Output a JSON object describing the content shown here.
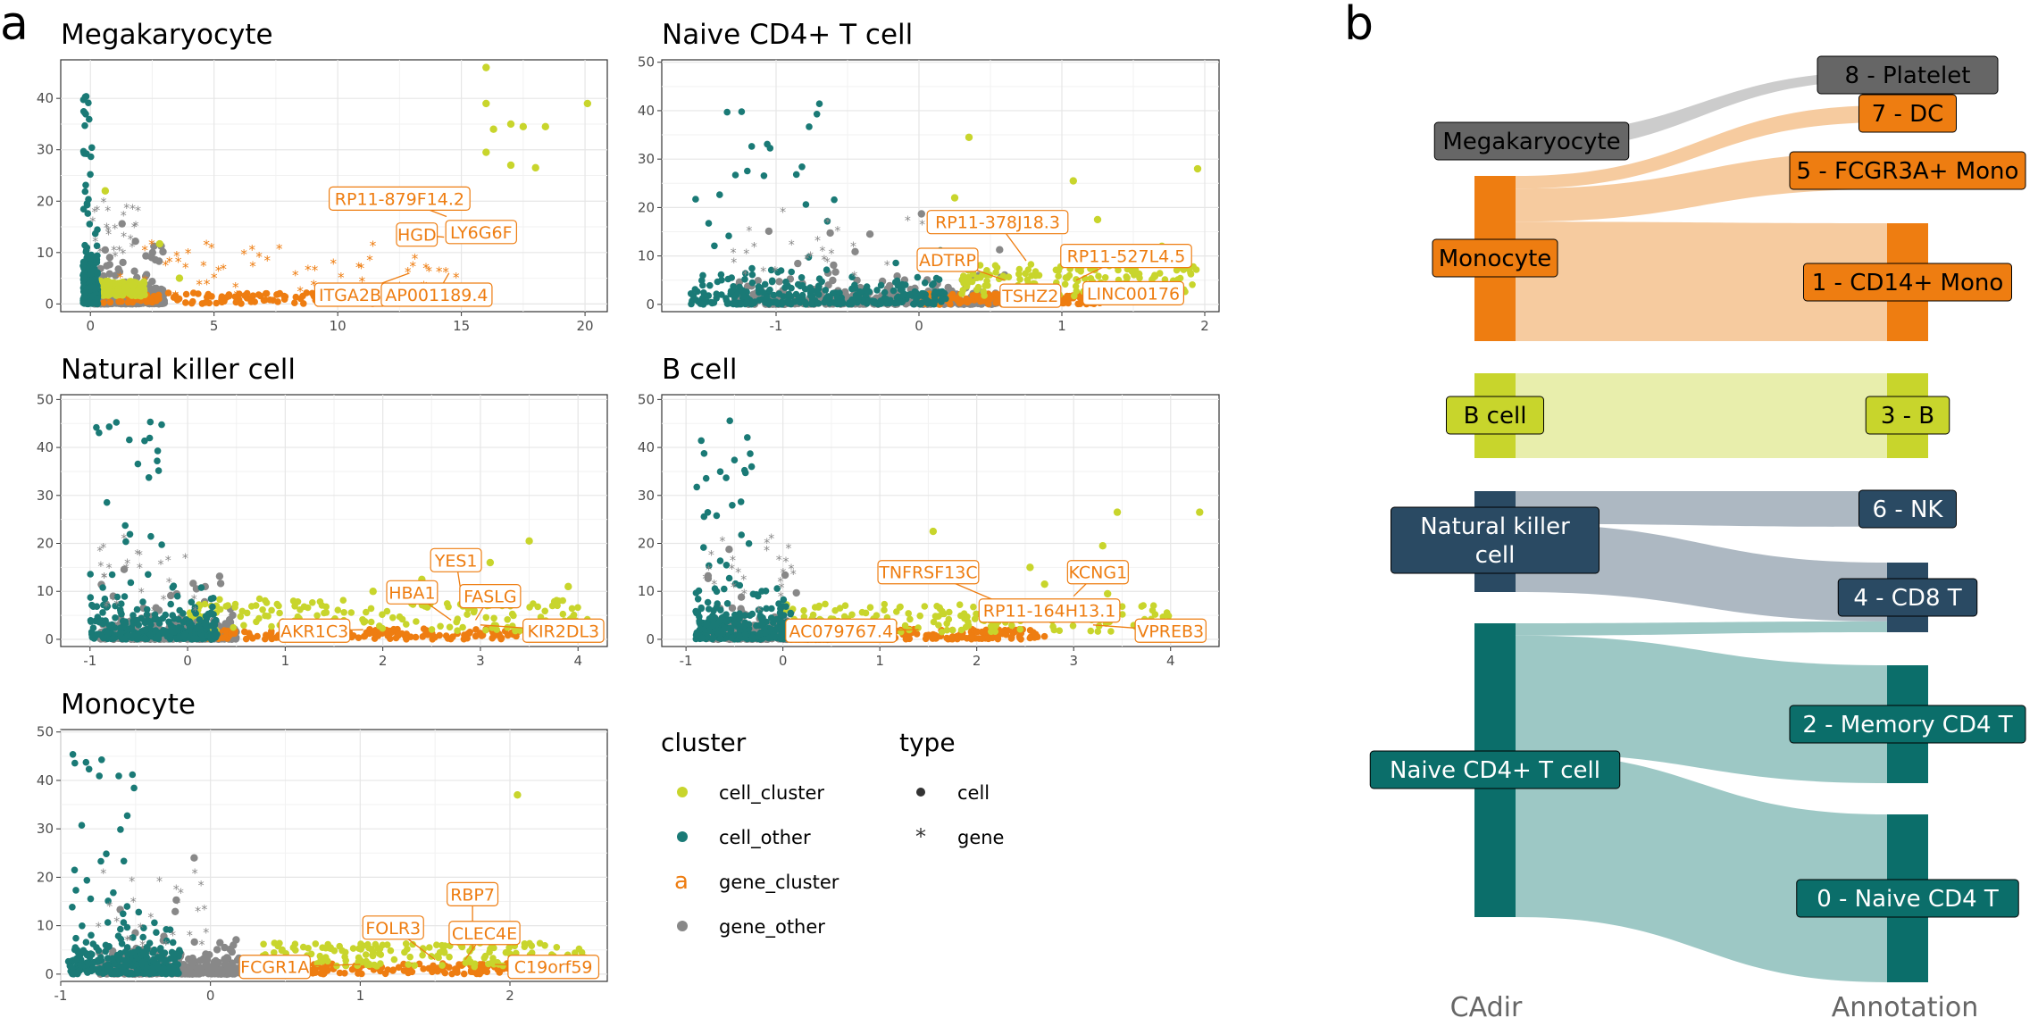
{
  "panel_labels": [
    "a",
    "b"
  ],
  "colors": {
    "cell_cluster": "#c8d52c",
    "cell_other": "#1a7a76",
    "gene_cluster": "#ee7d11",
    "gene_other": "#888888",
    "label_border": "#ee7d11"
  },
  "legend": {
    "cluster_title": "cluster",
    "cluster_items": [
      "cell_cluster",
      "cell_other",
      "gene_cluster",
      "gene_other"
    ],
    "gene_cluster_key_glyph": "a",
    "type_title": "type",
    "type_items": [
      "cell",
      "gene"
    ]
  },
  "chart_data": [
    {
      "type": "scatter",
      "title": "Megakaryocyte",
      "xlim": [
        -1.2,
        20.9
      ],
      "ylim": [
        -1.5,
        47.5
      ],
      "xticks": [
        0,
        5,
        10,
        15,
        20
      ],
      "yticks": [
        0,
        10,
        20,
        30,
        40
      ],
      "grid": true,
      "cell_cluster_points": [
        [
          16,
          46
        ],
        [
          16,
          39
        ],
        [
          16.3,
          34
        ],
        [
          17,
          35
        ],
        [
          17.5,
          34.5
        ],
        [
          18.4,
          34.5
        ],
        [
          16,
          29.5
        ],
        [
          17,
          27
        ],
        [
          18,
          26.5
        ],
        [
          20.1,
          39
        ],
        [
          0.6,
          22
        ],
        [
          2.8,
          11.7
        ],
        [
          3.6,
          5
        ]
      ],
      "gene_cluster_labels": [
        {
          "text": "RP11-879F14.2",
          "x": 12.5,
          "y": 20.5,
          "px": 14.4,
          "py": 17
        },
        {
          "text": "HGD",
          "x": 13.2,
          "y": 13.5,
          "px": 14.3,
          "py": 13
        },
        {
          "text": "LY6G6F",
          "x": 15.8,
          "y": 14,
          "px": 14.8,
          "py": 12
        },
        {
          "text": "ITGA2B",
          "x": 10.5,
          "y": 1.8,
          "px": 12.9,
          "py": 6
        },
        {
          "text": "AP001189.4",
          "x": 14,
          "y": 1.8,
          "px": 14.5,
          "py": 6
        }
      ]
    },
    {
      "type": "scatter",
      "title": "Naive CD4+ T cell",
      "xlim": [
        -1.8,
        2.1
      ],
      "ylim": [
        -1.5,
        50.5
      ],
      "xticks": [
        -1,
        0,
        1,
        2
      ],
      "yticks": [
        0,
        10,
        20,
        30,
        40,
        50
      ],
      "grid": true,
      "cell_cluster_points": [
        [
          0.35,
          34.5
        ],
        [
          1.08,
          25.5
        ],
        [
          0.25,
          22
        ],
        [
          1.95,
          28
        ],
        [
          1.25,
          17.5
        ],
        [
          0.9,
          15.5
        ],
        [
          1.7,
          12
        ]
      ],
      "gene_cluster_labels": [
        {
          "text": "RP11-378J18.3",
          "x": 0.55,
          "y": 17,
          "px": 0.75,
          "py": 9
        },
        {
          "text": "ADTRP",
          "x": 0.2,
          "y": 9.2,
          "px": 0.6,
          "py": 5
        },
        {
          "text": "RP11-527L4.5",
          "x": 1.45,
          "y": 10,
          "px": 1.1,
          "py": 5
        },
        {
          "text": "TSHZ2",
          "x": 0.78,
          "y": 1.8,
          "px": 0.7,
          "py": 4
        },
        {
          "text": "LINC00176",
          "x": 1.5,
          "y": 2.3,
          "px": 1.2,
          "py": 4
        }
      ]
    },
    {
      "type": "scatter",
      "title": "Natural killer cell",
      "xlim": [
        -1.3,
        4.3
      ],
      "ylim": [
        -1.5,
        51
      ],
      "xticks": [
        -1,
        0,
        1,
        2,
        3,
        4
      ],
      "yticks": [
        0,
        10,
        20,
        30,
        40,
        50
      ],
      "grid": true,
      "cell_cluster_points": [
        [
          3.5,
          20.5
        ],
        [
          3.1,
          16
        ],
        [
          2.4,
          12.5
        ],
        [
          1.9,
          10
        ],
        [
          3.9,
          11
        ]
      ],
      "gene_cluster_labels": [
        {
          "text": "YES1",
          "x": 2.75,
          "y": 16.5,
          "px": 2.8,
          "py": 10
        },
        {
          "text": "HBA1",
          "x": 2.3,
          "y": 9.8,
          "px": 2.7,
          "py": 4
        },
        {
          "text": "FASLG",
          "x": 3.1,
          "y": 9,
          "px": 2.95,
          "py": 4
        },
        {
          "text": "AKR1C3",
          "x": 1.3,
          "y": 1.8,
          "px": 1.8,
          "py": 2
        },
        {
          "text": "KIR2DL3",
          "x": 3.85,
          "y": 1.8,
          "px": 3.0,
          "py": 3
        }
      ]
    },
    {
      "type": "scatter",
      "title": "B cell",
      "xlim": [
        -1.25,
        4.5
      ],
      "ylim": [
        -1.5,
        51
      ],
      "xticks": [
        -1,
        0,
        1,
        2,
        3,
        4
      ],
      "yticks": [
        0,
        10,
        20,
        30,
        40,
        50
      ],
      "grid": true,
      "cell_cluster_points": [
        [
          4.3,
          26.5
        ],
        [
          3.45,
          26.5
        ],
        [
          1.55,
          22.5
        ],
        [
          3.3,
          19.5
        ],
        [
          2.55,
          15
        ],
        [
          2.7,
          11.5
        ],
        [
          3.35,
          9.5
        ]
      ],
      "gene_cluster_labels": [
        {
          "text": "TNFRSF13C",
          "x": 1.5,
          "y": 14,
          "px": 2.2,
          "py": 8
        },
        {
          "text": "KCNG1",
          "x": 3.25,
          "y": 14,
          "px": 3.0,
          "py": 9
        },
        {
          "text": "RP11-164H13.1",
          "x": 2.75,
          "y": 6,
          "px": 2.6,
          "py": 4
        },
        {
          "text": "AC079767.4",
          "x": 0.6,
          "y": 1.8,
          "px": 1.4,
          "py": 2
        },
        {
          "text": "VPREB3",
          "x": 4.0,
          "y": 1.8,
          "px": 3.2,
          "py": 3
        }
      ]
    },
    {
      "type": "scatter",
      "title": "Monocyte",
      "xlim": [
        -1.0,
        2.65
      ],
      "ylim": [
        -1.5,
        50.5
      ],
      "xticks": [
        -1,
        0,
        1,
        2
      ],
      "yticks": [
        0,
        10,
        20,
        30,
        40,
        50
      ],
      "grid": true,
      "cell_cluster_points": [
        [
          2.05,
          37
        ],
        [
          1.8,
          6.5
        ]
      ],
      "gene_cluster_labels": [
        {
          "text": "RBP7",
          "x": 1.75,
          "y": 16.5,
          "px": 1.75,
          "py": 5
        },
        {
          "text": "FOLR3",
          "x": 1.22,
          "y": 9.6,
          "px": 1.5,
          "py": 3
        },
        {
          "text": "CLEC4E",
          "x": 1.83,
          "y": 8.5,
          "px": 1.7,
          "py": 3
        },
        {
          "text": "FCGR1A",
          "x": 0.43,
          "y": 1.5,
          "px": 1.0,
          "py": 2
        },
        {
          "text": "C19orf59",
          "x": 2.29,
          "y": 1.5,
          "px": 1.9,
          "py": 2
        }
      ]
    },
    {
      "type": "sankey",
      "left_axis_label": "CAdir",
      "right_axis_label": "Annotation",
      "left_nodes": [
        {
          "name": "Megakaryocyte",
          "color": "#666666"
        },
        {
          "name": "Monocyte",
          "color": "#ee7d11"
        },
        {
          "name": "B cell",
          "color": "#c8d52c"
        },
        {
          "name": "Natural killer\ncell",
          "color": "#2a4a63"
        },
        {
          "name": "Naive CD4+ T cell",
          "color": "#0b6e6a"
        }
      ],
      "right_nodes": [
        {
          "name": "8 - Platelet",
          "color": "#666666"
        },
        {
          "name": "7 - DC",
          "color": "#ee7d11"
        },
        {
          "name": "5 - FCGR3A+ Mono",
          "color": "#ee7d11"
        },
        {
          "name": "1 - CD14+ Mono",
          "color": "#ee7d11"
        },
        {
          "name": "3 - B",
          "color": "#c8d52c"
        },
        {
          "name": "6 - NK",
          "color": "#2a4a63"
        },
        {
          "name": "4 - CD8 T",
          "color": "#2a4a63"
        },
        {
          "name": "2 - Memory CD4 T",
          "color": "#0b6e6a"
        },
        {
          "name": "0 - Naive CD4 T",
          "color": "#0b6e6a"
        }
      ],
      "flows": [
        {
          "from": "Megakaryocyte",
          "to": "8 - Platelet",
          "value": 1
        },
        {
          "from": "Monocyte",
          "to": "7 - DC",
          "value": 5
        },
        {
          "from": "Monocyte",
          "to": "5 - FCGR3A+ Mono",
          "value": 13
        },
        {
          "from": "Monocyte",
          "to": "1 - CD14+ Mono",
          "value": 47
        },
        {
          "from": "B cell",
          "to": "3 - B",
          "value": 33
        },
        {
          "from": "Natural killer\ncell",
          "to": "6 - NK",
          "value": 13
        },
        {
          "from": "Natural killer\ncell",
          "to": "4 - CD8 T",
          "value": 27
        },
        {
          "from": "Naive CD4+ T cell",
          "to": "4 - CD8 T",
          "value": 5
        },
        {
          "from": "Naive CD4+ T cell",
          "to": "2 - Memory CD4 T",
          "value": 48
        },
        {
          "from": "Naive CD4+ T cell",
          "to": "0 - Naive CD4 T",
          "value": 67
        }
      ]
    }
  ]
}
